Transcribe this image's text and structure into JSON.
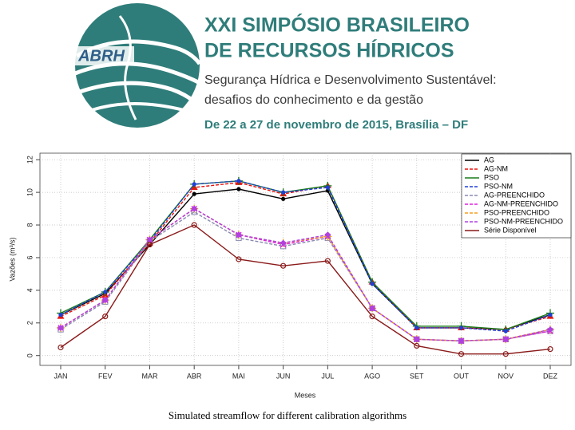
{
  "header": {
    "logo_text": "ABRH",
    "title_line1": "XXI SIMPÓSIO BRASILEIRO",
    "title_line2": "DE RECURSOS HÍDRICOS",
    "subtitle_line1": "Segurança Hídrica e Desenvolvimento Sustentável:",
    "subtitle_line2": "desafios do conhecimento e da gestão",
    "date": "De 22 a 27 de novembro de 2015, Brasília – DF"
  },
  "chart_data": {
    "type": "line",
    "x_label": "Meses",
    "y_label": "Vazões (m³/s)",
    "categories": [
      "JAN",
      "FEV",
      "MAR",
      "ABR",
      "MAI",
      "JUN",
      "JUL",
      "AGO",
      "SET",
      "OUT",
      "NOV",
      "DEZ"
    ],
    "ylim": [
      -0.6,
      12.4
    ],
    "yticks": [
      0,
      2,
      4,
      6,
      8,
      10,
      12
    ],
    "grid": true,
    "legend": "top-right",
    "series": [
      {
        "name": "AG",
        "color": "#000000",
        "marker": "dot",
        "dashed": false,
        "values": [
          2.5,
          3.8,
          6.8,
          9.9,
          10.2,
          9.6,
          10.1,
          4.4,
          1.7,
          1.7,
          1.6,
          2.5
        ]
      },
      {
        "name": "AG-NM",
        "color": "#e8140f",
        "marker": "triangle",
        "dashed": true,
        "values": [
          2.4,
          3.7,
          6.9,
          10.3,
          10.6,
          9.9,
          10.4,
          4.5,
          1.7,
          1.7,
          1.6,
          2.4
        ]
      },
      {
        "name": "PSO",
        "color": "#1a7a1a",
        "marker": "plus",
        "dashed": false,
        "values": [
          2.6,
          3.9,
          7.1,
          10.5,
          10.7,
          10.0,
          10.4,
          4.5,
          1.8,
          1.8,
          1.6,
          2.6
        ]
      },
      {
        "name": "PSO-NM",
        "color": "#1f3fd6",
        "marker": "dot",
        "dashed": true,
        "values": [
          2.5,
          3.9,
          7.0,
          10.5,
          10.7,
          10.0,
          10.3,
          4.4,
          1.7,
          1.7,
          1.5,
          2.5
        ]
      },
      {
        "name": "AG-PREENCHIDO",
        "color": "#8a8ab0",
        "marker": "square",
        "dashed": true,
        "values": [
          1.6,
          3.3,
          7.0,
          8.8,
          7.2,
          6.7,
          7.2,
          2.9,
          1.0,
          0.9,
          1.0,
          1.5
        ]
      },
      {
        "name": "AG-NM-PREENCHIDO",
        "color": "#e020e0",
        "marker": "cross",
        "dashed": true,
        "values": [
          1.7,
          3.4,
          7.1,
          9.0,
          7.4,
          6.8,
          7.3,
          2.9,
          1.0,
          0.9,
          1.0,
          1.5
        ]
      },
      {
        "name": "PSO-PREENCHIDO",
        "color": "#f0a020",
        "marker": "plus",
        "dashed": true,
        "values": [
          1.7,
          3.4,
          7.1,
          9.0,
          7.4,
          6.9,
          7.3,
          2.9,
          1.0,
          0.9,
          1.0,
          1.6
        ]
      },
      {
        "name": "PSO-NM-PREENCHIDO",
        "color": "#b040e0",
        "marker": "diamond",
        "dashed": true,
        "values": [
          1.7,
          3.4,
          7.1,
          9.0,
          7.4,
          6.9,
          7.4,
          2.9,
          1.0,
          0.9,
          1.0,
          1.6
        ]
      },
      {
        "name": "Série Disponível",
        "color": "#8b1a1a",
        "marker": "circle",
        "dashed": false,
        "values": [
          0.5,
          2.4,
          6.8,
          8.0,
          5.9,
          5.5,
          5.8,
          2.4,
          0.6,
          0.1,
          0.1,
          0.4
        ]
      }
    ]
  },
  "caption": "Simulated streamflow for different calibration algorithms"
}
